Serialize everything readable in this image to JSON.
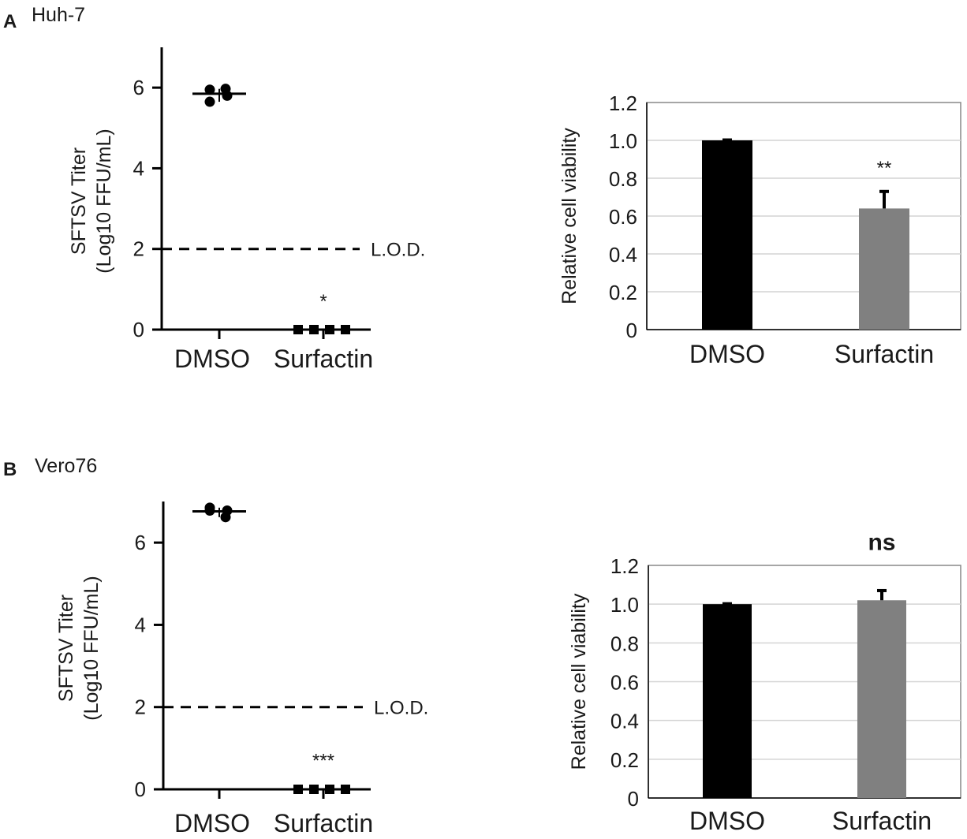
{
  "figure": {
    "panels": [
      {
        "letter": "A",
        "title": "Huh-7"
      },
      {
        "letter": "B",
        "title": "Vero76"
      }
    ]
  },
  "chart_data": [
    {
      "id": "A-titer",
      "type": "scatter",
      "panel": "A",
      "ylabel_line1": "SFTSV Titer",
      "ylabel_line2": "(Log10 FFU/mL)",
      "ylim": [
        0,
        7
      ],
      "yticks": [
        0,
        2,
        4,
        6
      ],
      "categories": [
        "DMSO",
        "Surfactin"
      ],
      "points": [
        [
          5.95,
          5.97,
          5.65,
          5.8
        ],
        [
          0,
          0,
          0,
          0
        ]
      ],
      "means": [
        5.85,
        0
      ],
      "lod": {
        "value": 2,
        "label": "L.O.D."
      },
      "annotations": [
        {
          "category": 1,
          "text": "*",
          "y": 0.55
        }
      ]
    },
    {
      "id": "A-viability",
      "type": "bar",
      "panel": "A",
      "ylabel": "Relative cell viability",
      "ylim": [
        0,
        1.2
      ],
      "yticks": [
        "0",
        "0.2",
        "0.4",
        "0.6",
        "0.8",
        "1.0",
        "1.2"
      ],
      "categories": [
        "DMSO",
        "Surfactin"
      ],
      "values": [
        1.0,
        0.64
      ],
      "errors": [
        0.002,
        0.09
      ],
      "colors": [
        "#000000",
        "#808080"
      ],
      "grid": true,
      "annotations": [
        {
          "category": 1,
          "text": "**",
          "y": 0.82
        }
      ]
    },
    {
      "id": "B-titer",
      "type": "scatter",
      "panel": "B",
      "ylabel_line1": "SFTSV Titer",
      "ylabel_line2": "(Log10 FFU/mL)",
      "ylim": [
        0,
        7
      ],
      "yticks": [
        0,
        2,
        4,
        6
      ],
      "categories": [
        "DMSO",
        "Surfactin"
      ],
      "points": [
        [
          6.85,
          6.62,
          6.78,
          6.78
        ],
        [
          0,
          0,
          0,
          0
        ]
      ],
      "means": [
        6.76,
        0
      ],
      "lod": {
        "value": 2,
        "label": "L.O.D."
      },
      "annotations": [
        {
          "category": 1,
          "text": "***",
          "y": 0.55
        }
      ]
    },
    {
      "id": "B-viability",
      "type": "bar",
      "panel": "B",
      "ylabel": "Relative cell viability",
      "ylim": [
        0,
        1.2
      ],
      "yticks": [
        "0",
        "0.2",
        "0.4",
        "0.6",
        "0.8",
        "1.0",
        "1.2"
      ],
      "categories": [
        "DMSO",
        "Surfactin"
      ],
      "values": [
        1.0,
        1.02
      ],
      "errors": [
        0.002,
        0.05
      ],
      "colors": [
        "#000000",
        "#808080"
      ],
      "grid": true,
      "annotations": [
        {
          "category": 1,
          "text": "ns",
          "y": 1.28
        }
      ]
    }
  ]
}
